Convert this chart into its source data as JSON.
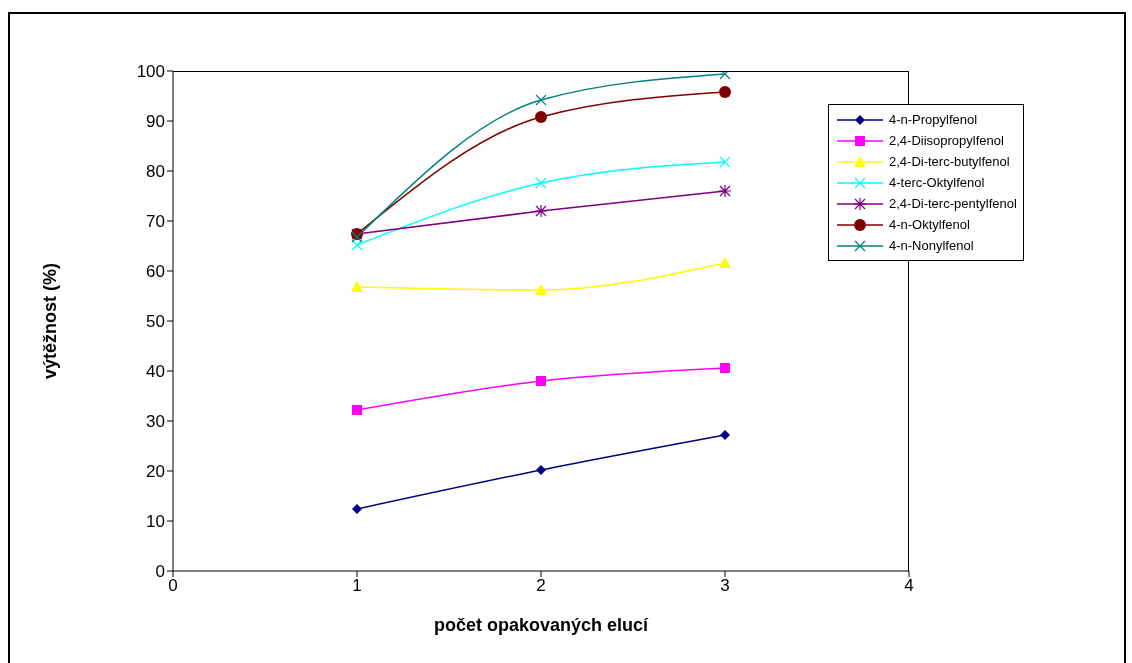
{
  "chart_data": {
    "type": "line",
    "xlabel": "počet opakovaných elucí",
    "ylabel": "výtěžnost (%)",
    "x": [
      1,
      2,
      3
    ],
    "xlim": [
      0,
      4
    ],
    "xticks": [
      0,
      1,
      2,
      3,
      4
    ],
    "ylim": [
      0,
      100
    ],
    "yticks": [
      0,
      10,
      20,
      30,
      40,
      50,
      60,
      70,
      80,
      90,
      100
    ],
    "grid": false,
    "legend": "right",
    "series": [
      {
        "name": "4-n-Propylfenol",
        "color": "#000080",
        "marker": "diamond",
        "values": [
          12.4,
          20.2,
          27.2
        ]
      },
      {
        "name": "2,4-Diisopropylfenol",
        "color": "#ff00ff",
        "marker": "square",
        "values": [
          32.2,
          38,
          40.6
        ]
      },
      {
        "name": "2,4-Di-terc-butylfenol",
        "color": "#ffff00",
        "marker": "triangle",
        "values": [
          56.8,
          56.2,
          61.6
        ]
      },
      {
        "name": "4-terc-Oktylfenol",
        "color": "#00ffff",
        "marker": "cross",
        "values": [
          65.2,
          77.6,
          81.8
        ]
      },
      {
        "name": "2,4-Di-terc-pentylfenol",
        "color": "#800080",
        "marker": "cross",
        "values": [
          67.4,
          72,
          76
        ]
      },
      {
        "name": "4-n-Oktylfenol",
        "color": "#800000",
        "marker": "circle",
        "values": [
          67.4,
          90.8,
          95.8
        ]
      },
      {
        "name": "4-n-Nonylfenol",
        "color": "#008080",
        "marker": "cross",
        "values": [
          66.8,
          94.2,
          99.4
        ]
      }
    ]
  }
}
